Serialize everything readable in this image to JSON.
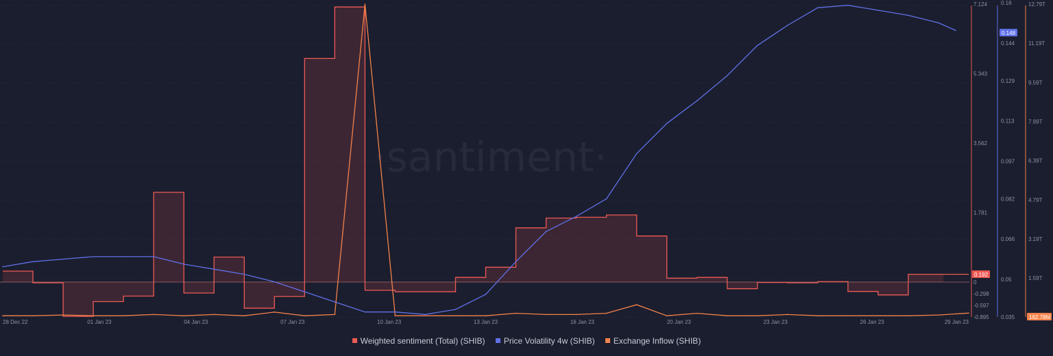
{
  "watermark": "·santiment·",
  "colors": {
    "background": "#1b1e2e",
    "grid": "#262a3c",
    "sentiment": "#ee5a55",
    "volatility": "#5f71e8",
    "inflow": "#f5834b"
  },
  "legend": [
    {
      "label": "Weighted sentiment (Total) (SHIB)",
      "color": "#ee5a55"
    },
    {
      "label": "Price Volatility 4w (SHIB)",
      "color": "#5f71e8"
    },
    {
      "label": "Exchange Inflow (SHIB)",
      "color": "#f5834b"
    }
  ],
  "chart_data": {
    "type": "line",
    "x_start": "28 Dec 22",
    "x_end": "29 Jan 23",
    "x_ticks": [
      "28 Dec 22",
      "01 Jan 23",
      "04 Jan 23",
      "07 Jan 23",
      "10 Jan 23",
      "13 Jan 23",
      "16 Jan 23",
      "20 Jan 23",
      "23 Jan 23",
      "26 Jan 23",
      "29 Jan 23"
    ],
    "axes": {
      "sentiment": {
        "ticks": [
          "7.124",
          "5.343",
          "3.562",
          "1.781",
          "0",
          "-0.298",
          "-0.597",
          "-0.895"
        ],
        "range": [
          -0.895,
          7.124
        ],
        "current": "0.192"
      },
      "volatility": {
        "ticks": [
          "0.16",
          "0.144",
          "0.129",
          "0.113",
          "0.097",
          "0.082",
          "0.066",
          "0.05",
          "0.035"
        ],
        "range": [
          0.035,
          0.16
        ],
        "current": "0.148"
      },
      "inflow": {
        "ticks": [
          "12.79T",
          "11.19T",
          "9.59T",
          "7.99T",
          "6.39T",
          "4.79T",
          "3.19T",
          "1.59T"
        ],
        "range": [
          0,
          12.79
        ],
        "unit": "T",
        "current": "162.78M"
      }
    },
    "series": [
      {
        "name": "Weighted sentiment (Total) (SHIB)",
        "step": true,
        "x": [
          "2022-12-28",
          "2022-12-29",
          "2022-12-30",
          "2022-12-31",
          "2023-01-01",
          "2023-01-02",
          "2023-01-03",
          "2023-01-04",
          "2023-01-05",
          "2023-01-06",
          "2023-01-07",
          "2023-01-08",
          "2023-01-09",
          "2023-01-10",
          "2023-01-11",
          "2023-01-12",
          "2023-01-13",
          "2023-01-14",
          "2023-01-15",
          "2023-01-16",
          "2023-01-17",
          "2023-01-18",
          "2023-01-19",
          "2023-01-20",
          "2023-01-21",
          "2023-01-22",
          "2023-01-23",
          "2023-01-24",
          "2023-01-25",
          "2023-01-26",
          "2023-01-27",
          "2023-01-28",
          "2023-01-29"
        ],
        "values": [
          0.28,
          -0.02,
          -0.88,
          -0.5,
          -0.36,
          2.3,
          -0.28,
          0.64,
          -0.67,
          -0.37,
          5.73,
          7.05,
          -0.21,
          -0.25,
          -0.25,
          0.12,
          0.38,
          1.39,
          1.64,
          1.66,
          1.72,
          1.18,
          0.1,
          0.12,
          -0.17,
          -0.01,
          -0.02,
          0.01,
          -0.24,
          -0.33,
          0.2,
          0.2,
          0.2
        ]
      },
      {
        "name": "Price Volatility 4w (SHIB)",
        "x": [
          "2022-12-28",
          "2022-12-29",
          "2022-12-30",
          "2022-12-31",
          "2023-01-01",
          "2023-01-02",
          "2023-01-03",
          "2023-01-04",
          "2023-01-05",
          "2023-01-06",
          "2023-01-07",
          "2023-01-08",
          "2023-01-09",
          "2023-01-10",
          "2023-01-11",
          "2023-01-12",
          "2023-01-13",
          "2023-01-14",
          "2023-01-15",
          "2023-01-16",
          "2023-01-17",
          "2023-01-18",
          "2023-01-19",
          "2023-01-20",
          "2023-01-21",
          "2023-01-22",
          "2023-01-23",
          "2023-01-24",
          "2023-01-25",
          "2023-01-26",
          "2023-01-27",
          "2023-01-28",
          "2023-01-29"
        ],
        "values": [
          0.055,
          0.057,
          0.058,
          0.059,
          0.059,
          0.059,
          0.056,
          0.054,
          0.052,
          0.049,
          0.045,
          0.041,
          0.037,
          0.037,
          0.036,
          0.038,
          0.044,
          0.057,
          0.069,
          0.075,
          0.082,
          0.1,
          0.112,
          0.121,
          0.131,
          0.143,
          0.151,
          0.158,
          0.159,
          0.157,
          0.155,
          0.152,
          0.149
        ]
      },
      {
        "name": "Exchange Inflow (SHIB)",
        "x": [
          "2022-12-28",
          "2022-12-29",
          "2022-12-30",
          "2022-12-31",
          "2023-01-01",
          "2023-01-02",
          "2023-01-03",
          "2023-01-04",
          "2023-01-05",
          "2023-01-06",
          "2023-01-07",
          "2023-01-08",
          "2023-01-09",
          "2023-01-10",
          "2023-01-11",
          "2023-01-12",
          "2023-01-13",
          "2023-01-14",
          "2023-01-15",
          "2023-01-16",
          "2023-01-17",
          "2023-01-18",
          "2023-01-19",
          "2023-01-20",
          "2023-01-21",
          "2023-01-22",
          "2023-01-23",
          "2023-01-24",
          "2023-01-25",
          "2023-01-26",
          "2023-01-27",
          "2023-01-28",
          "2023-01-29"
        ],
        "values": [
          0.05,
          0.05,
          0.08,
          0.05,
          0.05,
          0.1,
          0.05,
          0.1,
          0.05,
          0.2,
          0.05,
          0.1,
          12.79,
          0.05,
          0.05,
          0.05,
          0.05,
          0.15,
          0.1,
          0.1,
          0.15,
          0.5,
          0.05,
          0.15,
          0.05,
          0.05,
          0.1,
          0.05,
          0.05,
          0.05,
          0.05,
          0.08,
          0.16
        ]
      }
    ],
    "legend_position": "bottom-center",
    "grid": true
  }
}
